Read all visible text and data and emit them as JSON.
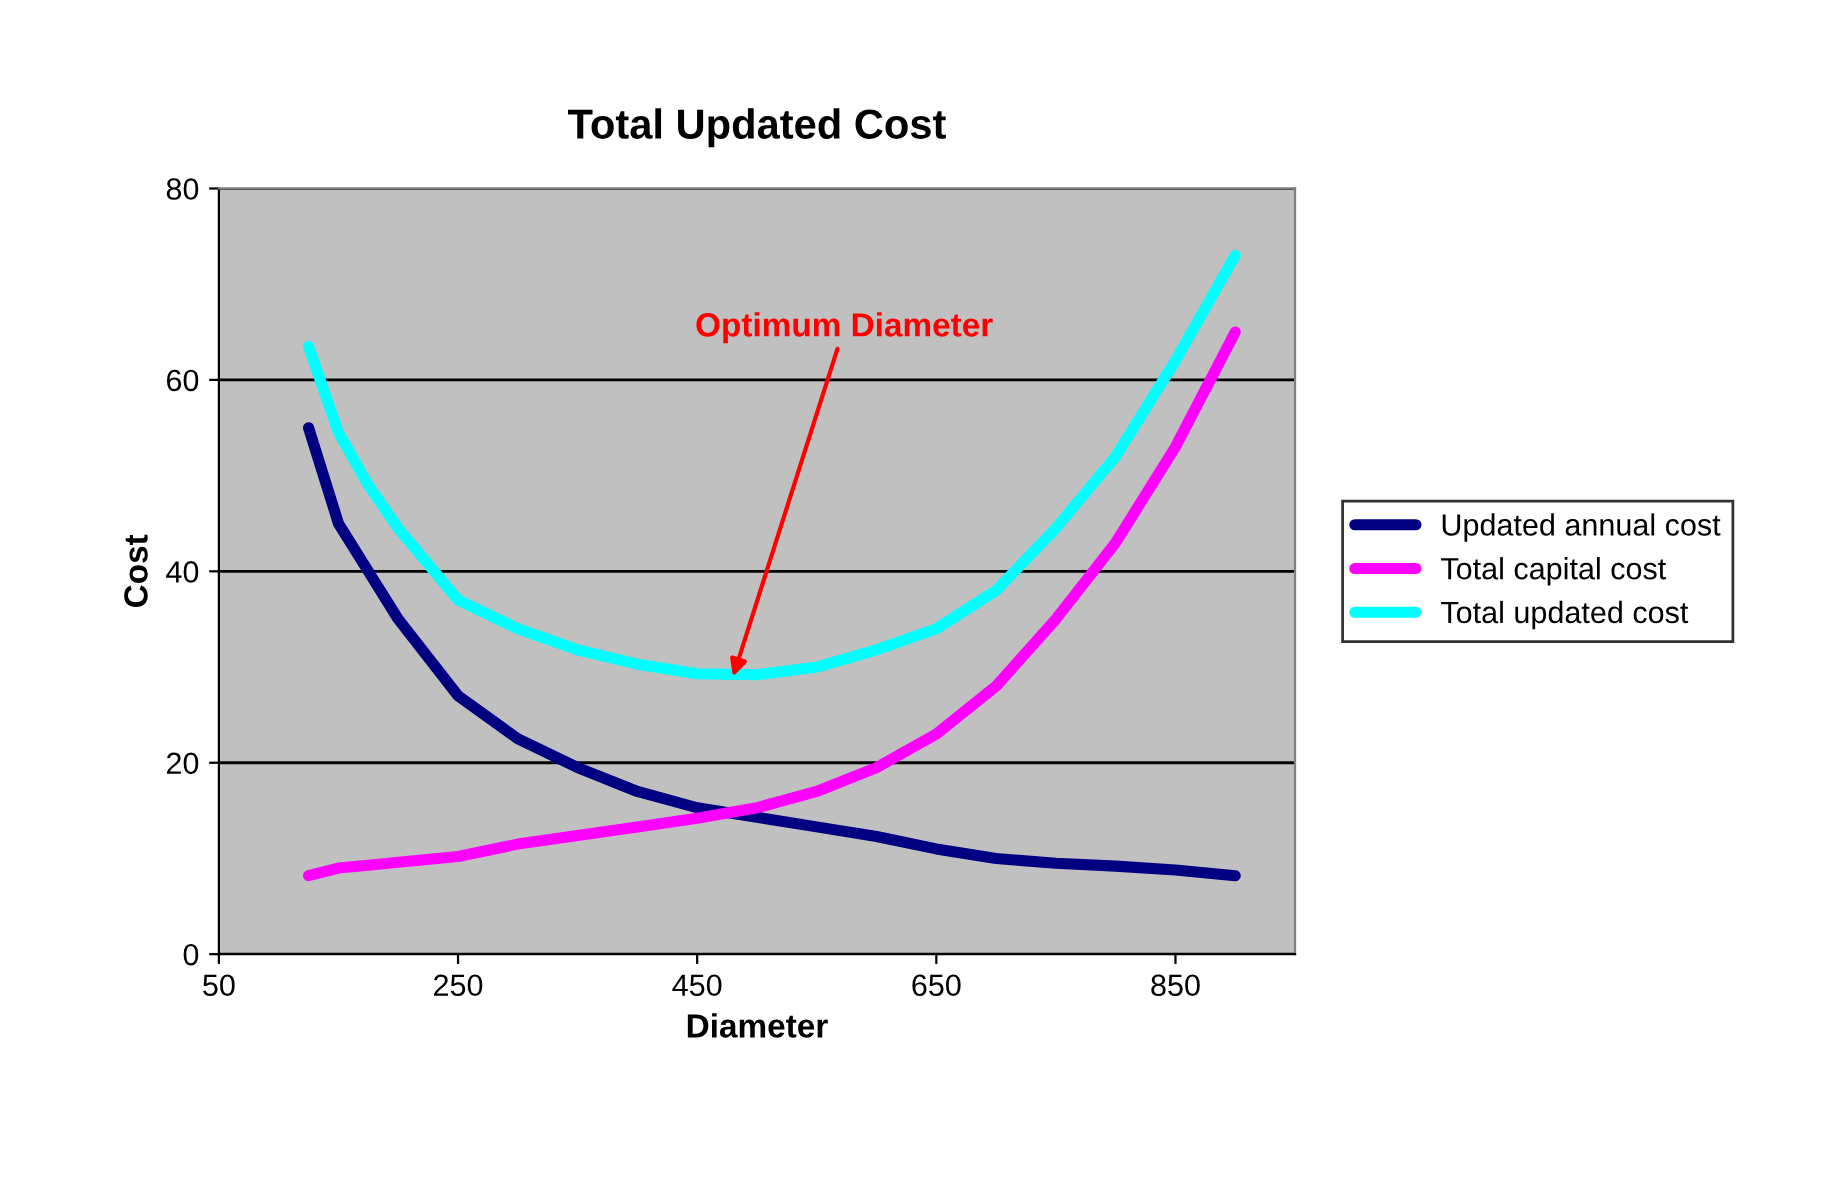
{
  "chart_data": {
    "type": "line",
    "title": "Total Updated Cost",
    "xlabel": "Diameter",
    "ylabel": "Cost",
    "x": [
      125,
      150,
      175,
      200,
      250,
      300,
      350,
      400,
      450,
      500,
      550,
      600,
      650,
      700,
      750,
      800,
      850,
      900
    ],
    "series": [
      {
        "name": "Updated annual cost",
        "color": "#000080",
        "values": [
          55,
          45,
          40,
          35,
          27,
          22.5,
          19.5,
          17,
          15.3,
          14.3,
          13.3,
          12.3,
          11,
          10,
          9.5,
          9.2,
          8.8,
          8.2
        ]
      },
      {
        "name": "Total capital cost",
        "color": "#ff00ff",
        "values": [
          8.2,
          9,
          9.3,
          9.6,
          10.2,
          11.5,
          12.4,
          13.3,
          14.2,
          15.3,
          17,
          19.5,
          23,
          28,
          35,
          43,
          53,
          65
        ]
      },
      {
        "name": "Total updated cost",
        "color": "#00ffff",
        "values": [
          63.5,
          54.5,
          49,
          44.5,
          37,
          34,
          31.8,
          30.3,
          29.3,
          29.2,
          30,
          31.8,
          34,
          38,
          44.5,
          52,
          62,
          73
        ]
      }
    ],
    "annotations": [
      {
        "text": "Optimum Diameter",
        "x": 480,
        "y": 29
      }
    ],
    "xlim": [
      50,
      950
    ],
    "xticks": [
      50,
      250,
      450,
      650,
      850
    ],
    "ylim": [
      0,
      80
    ],
    "yticks": [
      0,
      20,
      40,
      60,
      80
    ],
    "grid": "y",
    "legend": "right",
    "marker": "none",
    "line_style": "solid"
  }
}
